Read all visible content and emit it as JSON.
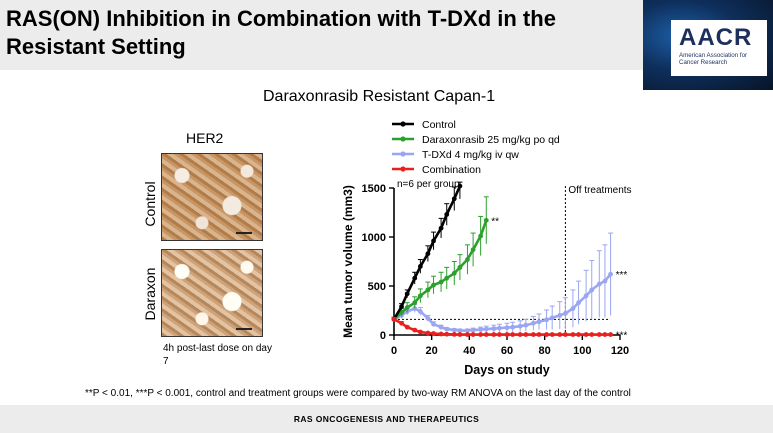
{
  "header": {
    "title": "RAS(ON) Inhibition in Combination with T-DXd in the Resistant Setting",
    "logo_text": "AACR",
    "logo_subtext": "American Association for Cancer Research"
  },
  "figure": {
    "title": "Daraxonrasib Resistant Capan-1",
    "her2_label": "HER2",
    "row_labels": [
      "Control",
      "Daraxon"
    ],
    "image_caption": "4h post-last dose on day 7"
  },
  "chart_data": {
    "type": "line",
    "xlabel": "Days on study",
    "ylabel": "Mean tumor volume (mm3)",
    "xlim": [
      0,
      120
    ],
    "ylim": [
      0,
      1500
    ],
    "xticks": [
      0,
      20,
      40,
      60,
      80,
      100,
      120
    ],
    "yticks": [
      0,
      500,
      1000,
      1500
    ],
    "legend_position": "top",
    "annotations": {
      "group_size": "n=6 per group",
      "off_treatments": "Off treatments",
      "off_treatments_day": 91,
      "reference_line_value": 160
    },
    "series": [
      {
        "name": "Control",
        "color": "#000000",
        "significance": "",
        "x": [
          0,
          4,
          7,
          11,
          14,
          18,
          21,
          25,
          28,
          32,
          35
        ],
        "y": [
          160,
          290,
          420,
          580,
          700,
          830,
          960,
          1090,
          1230,
          1390,
          1520
        ],
        "err": [
          20,
          30,
          40,
          60,
          70,
          80,
          90,
          100,
          110,
          120,
          130
        ]
      },
      {
        "name": "Daraxonrasib 25 mg/kg po qd",
        "color": "#2ca02c",
        "significance": "**",
        "x": [
          0,
          4,
          7,
          11,
          14,
          18,
          21,
          25,
          28,
          32,
          35,
          39,
          42,
          46,
          49
        ],
        "y": [
          160,
          230,
          280,
          330,
          400,
          460,
          510,
          540,
          580,
          630,
          690,
          770,
          870,
          1010,
          1170
        ],
        "err": [
          20,
          40,
          50,
          60,
          70,
          80,
          90,
          100,
          110,
          120,
          130,
          150,
          170,
          200,
          240
        ]
      },
      {
        "name": "T-DXd 4 mg/kg iv qw",
        "color": "#9aa6f2",
        "significance": "***",
        "x": [
          0,
          4,
          7,
          11,
          14,
          18,
          21,
          25,
          28,
          32,
          35,
          39,
          42,
          46,
          49,
          53,
          56,
          60,
          63,
          67,
          70,
          74,
          77,
          81,
          84,
          88,
          91,
          95,
          98,
          102,
          105,
          109,
          112,
          115
        ],
        "y": [
          160,
          200,
          240,
          270,
          240,
          170,
          110,
          80,
          60,
          50,
          45,
          45,
          50,
          55,
          60,
          65,
          70,
          75,
          80,
          90,
          100,
          120,
          135,
          155,
          175,
          200,
          220,
          270,
          330,
          400,
          460,
          520,
          550,
          620
        ],
        "err": [
          20,
          30,
          35,
          40,
          40,
          30,
          25,
          20,
          15,
          15,
          15,
          15,
          20,
          25,
          30,
          35,
          40,
          45,
          50,
          55,
          60,
          70,
          80,
          100,
          120,
          140,
          160,
          190,
          220,
          260,
          300,
          340,
          370,
          420
        ]
      },
      {
        "name": "Combination",
        "color": "#e8201e",
        "significance": "***",
        "x": [
          0,
          4,
          7,
          11,
          14,
          18,
          21,
          25,
          28,
          32,
          35,
          39,
          42,
          46,
          49,
          53,
          56,
          60,
          63,
          67,
          70,
          74,
          77,
          81,
          84,
          88,
          91,
          95,
          98,
          102,
          105,
          109,
          112,
          115
        ],
        "y": [
          160,
          120,
          80,
          50,
          30,
          20,
          15,
          10,
          8,
          6,
          5,
          5,
          5,
          5,
          5,
          5,
          5,
          5,
          5,
          5,
          5,
          5,
          5,
          5,
          5,
          5,
          5,
          5,
          5,
          5,
          5,
          5,
          5,
          5
        ],
        "err": [
          20,
          15,
          12,
          10,
          8,
          6,
          5,
          4,
          3,
          3,
          3,
          3,
          3,
          3,
          3,
          3,
          3,
          3,
          3,
          3,
          3,
          3,
          3,
          3,
          3,
          3,
          3,
          3,
          3,
          3,
          3,
          3,
          3,
          3
        ]
      }
    ]
  },
  "footnote": "**P < 0.01, ***P < 0.001, control and treatment groups were compared by two-way RM ANOVA on the last day of the control",
  "footer": {
    "text": "RAS ONCOGENESIS AND THERAPEUTICS"
  }
}
